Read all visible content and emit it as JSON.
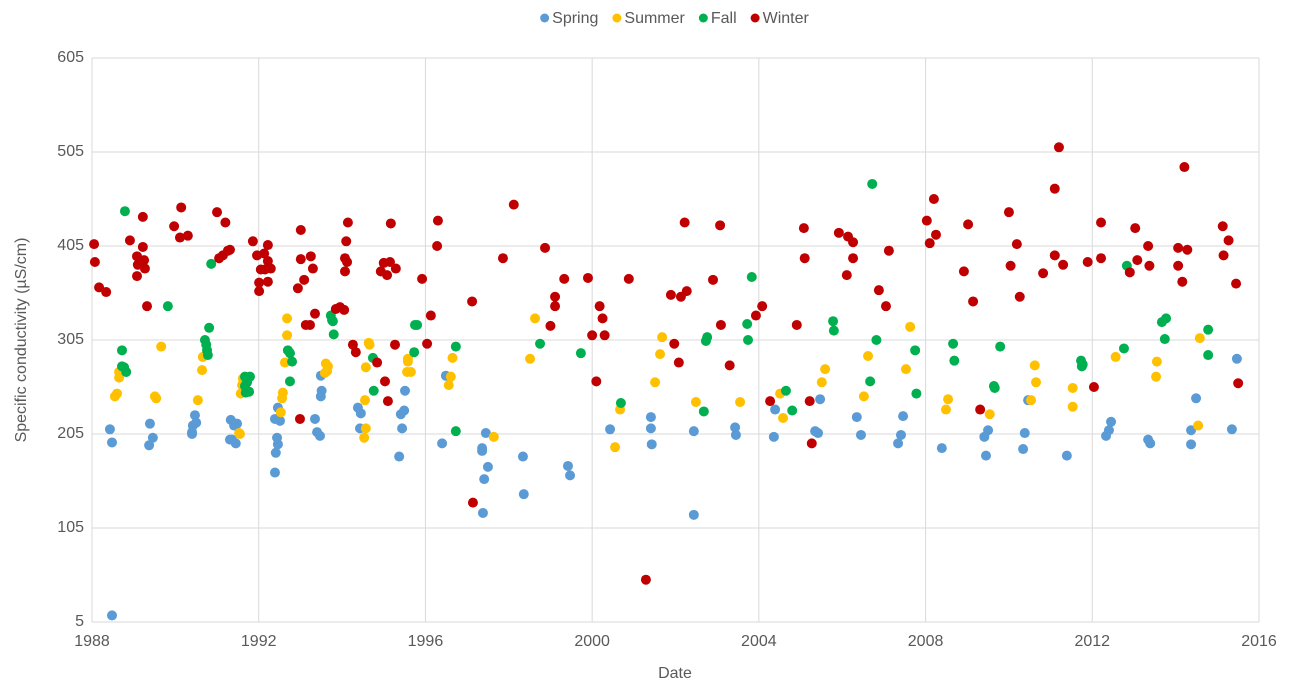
{
  "chart_data": {
    "type": "scatter",
    "x_label": "Date",
    "y_label": "Specific conductivity (µS/cm)",
    "xlim": [
      1988,
      2016
    ],
    "xticks": [
      1988,
      1992,
      1996,
      2000,
      2004,
      2008,
      2012,
      2016
    ],
    "ylim": [
      5,
      605
    ],
    "yticks": [
      5,
      105,
      205,
      305,
      405,
      505,
      605
    ],
    "grid": true,
    "legend": "top",
    "series": [
      {
        "name": "Spring",
        "color": "#5b9bd5",
        "x": [
          1988.43,
          1988.48,
          1988.48,
          1989.39,
          1989.46,
          1989.37,
          1990.4,
          1990.42,
          1990.47,
          1990.5,
          1990.4,
          1991.33,
          1991.41,
          1991.48,
          1991.36,
          1991.45,
          1991.31,
          1992.39,
          1992.46,
          1992.44,
          1992.41,
          1992.39,
          1992.46,
          1992.51,
          1993.35,
          1993.4,
          1993.47,
          1993.49,
          1993.51,
          1993.49,
          1994.38,
          1994.45,
          1994.43,
          1995.44,
          1995.49,
          1995.51,
          1995.37,
          1995.41,
          1996.4,
          1996.49,
          1997.36,
          1997.41,
          1997.5,
          1997.45,
          1997.36,
          1997.38,
          1998.34,
          1998.36,
          1999.42,
          1999.47,
          2000.43,
          2001.41,
          2001.41,
          2001.43,
          2002.44,
          2002.44,
          2003.43,
          2003.45,
          2004.36,
          2004.39,
          2005.35,
          2005.42,
          2005.47,
          2006.35,
          2006.45,
          2007.34,
          2007.41,
          2007.46,
          2008.39,
          2009.45,
          2009.41,
          2009.5,
          2010.34,
          2010.38,
          2010.46,
          2011.39,
          2012.33,
          2012.4,
          2012.45,
          2013.34,
          2013.39,
          2014.37,
          2014.37,
          2014.49,
          2015.35,
          2015.47
        ],
        "values": [
          210,
          196,
          12,
          216,
          201,
          193,
          207,
          214,
          225,
          217,
          205,
          220,
          214,
          216,
          199,
          195,
          199,
          221,
          233,
          201,
          185,
          164,
          194,
          219,
          221,
          207,
          203,
          267,
          251,
          245,
          233,
          227,
          211,
          211,
          230,
          251,
          181,
          226,
          195,
          267,
          187,
          157,
          170,
          206,
          190,
          121,
          181,
          141,
          171,
          161,
          210,
          211,
          223,
          194,
          208,
          119,
          212,
          204,
          202,
          231,
          208,
          206,
          242,
          223,
          204,
          195,
          204,
          224,
          190,
          182,
          202,
          209,
          189,
          206,
          241,
          182,
          203,
          209,
          218,
          199,
          195,
          194,
          209,
          243,
          210,
          285
        ]
      },
      {
        "name": "Summer",
        "color": "#ffc000",
        "x": [
          1988.55,
          1988.6,
          1988.65,
          1988.65,
          1989.51,
          1989.54,
          1989.66,
          1990.54,
          1990.64,
          1990.66,
          1991.53,
          1991.57,
          1991.6,
          1991.62,
          1991.55,
          1992.53,
          1992.58,
          1992.56,
          1992.63,
          1992.68,
          1992.68,
          1993.59,
          1993.61,
          1993.66,
          1993.64,
          1994.53,
          1994.57,
          1994.55,
          1994.57,
          1994.64,
          1994.66,
          1995.56,
          1995.58,
          1995.65,
          1995.58,
          1996.56,
          1996.61,
          1996.65,
          1997.64,
          1998.51,
          1998.63,
          2000.55,
          2000.67,
          2001.51,
          2001.63,
          2001.68,
          2002.49,
          2003.55,
          2004.51,
          2004.58,
          2005.51,
          2005.59,
          2006.52,
          2006.62,
          2007.53,
          2007.63,
          2008.54,
          2008.49,
          2009.54,
          2010.53,
          2010.62,
          2010.65,
          2011.53,
          2011.53,
          2012.56,
          2013.55,
          2013.53,
          2014.54,
          2014.58
        ],
        "values": [
          245,
          248,
          265,
          271,
          245,
          243,
          298,
          241,
          273,
          287,
          206,
          248,
          257,
          264,
          205,
          228,
          249,
          243,
          281,
          310,
          328,
          270,
          280,
          277,
          272,
          201,
          211,
          241,
          276,
          302,
          300,
          271,
          285,
          271,
          282,
          257,
          266,
          286,
          202,
          285,
          328,
          191,
          231,
          260,
          290,
          308,
          239,
          239,
          248,
          222,
          260,
          274,
          245,
          288,
          274,
          319,
          242,
          231,
          226,
          241,
          278,
          260,
          254,
          234,
          287,
          282,
          266,
          214,
          307
        ]
      },
      {
        "name": "Fall",
        "color": "#00b050",
        "x": [
          1988.79,
          1988.72,
          1988.72,
          1988.77,
          1988.82,
          1989.82,
          1990.71,
          1990.74,
          1990.76,
          1990.78,
          1990.81,
          1990.86,
          1991.67,
          1991.72,
          1991.77,
          1991.79,
          1991.67,
          1991.69,
          1992.7,
          1992.75,
          1992.8,
          1992.75,
          1993.73,
          1993.76,
          1993.78,
          1993.8,
          1994.74,
          1994.76,
          1995.73,
          1995.75,
          1995.8,
          1996.73,
          1996.73,
          1998.75,
          1999.73,
          2000.69,
          2002.76,
          2002.73,
          2002.68,
          2003.72,
          2003.74,
          2003.83,
          2004.65,
          2004.8,
          2005.78,
          2005.8,
          2006.67,
          2006.72,
          2006.82,
          2007.78,
          2007.75,
          2008.66,
          2008.69,
          2009.64,
          2009.66,
          2009.79,
          2011.73,
          2011.75,
          2011.77,
          2012.76,
          2012.83,
          2013.67,
          2013.77,
          2013.74,
          2014.78,
          2014.78
        ],
        "values": [
          442,
          294,
          277,
          276,
          271,
          341,
          305,
          300,
          294,
          289,
          318,
          386,
          266,
          260,
          250,
          266,
          256,
          249,
          294,
          291,
          282,
          261,
          331,
          326,
          325,
          311,
          286,
          251,
          292,
          321,
          321,
          298,
          208,
          301,
          291,
          238,
          308,
          304,
          229,
          322,
          305,
          372,
          251,
          230,
          325,
          315,
          261,
          471,
          305,
          248,
          294,
          301,
          283,
          256,
          254,
          298,
          283,
          277,
          279,
          296,
          384,
          324,
          328,
          306,
          316,
          289
        ]
      },
      {
        "name": "Winter",
        "color": "#c00000",
        "x": [
          1988.05,
          1988.07,
          1988.17,
          1988.34,
          1988.91,
          1989.08,
          1989.1,
          1989.22,
          1989.22,
          1989.25,
          1989.27,
          1989.08,
          1989.32,
          1989.97,
          1990.14,
          1990.11,
          1990.3,
          1991.0,
          1991.2,
          1991.05,
          1991.14,
          1991.26,
          1991.31,
          1991.86,
          1992.01,
          1992.01,
          1992.05,
          1992.13,
          1992.15,
          1992.22,
          1992.22,
          1992.22,
          1992.29,
          1991.96,
          1993.01,
          1993.01,
          1992.94,
          1993.09,
          1993.13,
          1992.99,
          1993.23,
          1993.25,
          1993.3,
          1993.35,
          1994.05,
          1993.95,
          1993.85,
          1994.07,
          1994.1,
          1994.14,
          1994.12,
          1994.07,
          1994.26,
          1994.33,
          1994.84,
          1994.93,
          1995.03,
          1995.1,
          1995.0,
          1995.08,
          1995.15,
          1995.17,
          1995.29,
          1995.27,
          1995.92,
          1996.13,
          1996.04,
          1996.3,
          1996.28,
          1997.12,
          1997.14,
          1997.86,
          1998.12,
          1998.87,
          1999.0,
          1999.11,
          1999.11,
          1999.33,
          1999.9,
          2000.0,
          2000.1,
          2000.18,
          2000.25,
          2000.3,
          2000.88,
          2001.29,
          2001.89,
          2001.97,
          2002.08,
          2002.13,
          2002.22,
          2002.27,
          2003.07,
          2003.09,
          2002.9,
          2003.3,
          2004.08,
          2003.93,
          2004.27,
          2004.91,
          2005.08,
          2005.1,
          2005.22,
          2005.27,
          2005.92,
          2006.14,
          2006.26,
          2006.11,
          2006.26,
          2006.88,
          2007.05,
          2007.12,
          2008.03,
          2008.2,
          2008.25,
          2008.1,
          2009.02,
          2008.92,
          2009.14,
          2009.31,
          2010.0,
          2010.19,
          2010.04,
          2010.26,
          2010.82,
          2011.1,
          2011.1,
          2011.3,
          2011.2,
          2011.89,
          2012.04,
          2012.21,
          2012.21,
          2012.9,
          2013.03,
          2013.08,
          2013.34,
          2013.37,
          2014.06,
          2014.16,
          2014.21,
          2014.28,
          2014.06,
          2015.13,
          2015.27,
          2015.15,
          2015.45,
          2015.5
        ],
        "values": [
          407,
          388,
          361,
          356,
          411,
          394,
          385,
          436,
          404,
          390,
          381,
          373,
          341,
          426,
          446,
          414,
          416,
          441,
          430,
          392,
          395,
          400,
          401,
          410,
          366,
          357,
          380,
          397,
          380,
          406,
          389,
          367,
          381,
          395,
          422,
          391,
          360,
          369,
          321,
          221,
          321,
          394,
          381,
          333,
          337,
          340,
          338,
          392,
          410,
          430,
          388,
          378,
          300,
          292,
          281,
          378,
          261,
          240,
          387,
          374,
          388,
          429,
          381,
          300,
          370,
          331,
          301,
          432,
          405,
          346,
          132,
          392,
          449,
          403,
          320,
          351,
          341,
          370,
          371,
          310,
          261,
          341,
          328,
          310,
          370,
          50,
          353,
          301,
          281,
          351,
          430,
          357,
          427,
          321,
          369,
          278,
          341,
          331,
          240,
          321,
          424,
          392,
          240,
          195,
          419,
          415,
          409,
          374,
          392,
          358,
          341,
          400,
          432,
          455,
          417,
          408,
          428,
          378,
          346,
          231,
          441,
          407,
          384,
          351,
          376,
          466,
          395,
          385,
          510,
          388,
          255,
          392,
          430,
          377,
          424,
          390,
          405,
          384,
          403,
          367,
          489,
          401,
          384,
          426,
          411,
          395,
          365,
          259
        ]
      }
    ]
  }
}
